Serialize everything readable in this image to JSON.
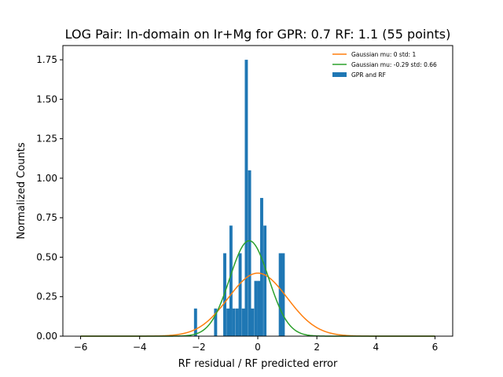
{
  "chart_data": {
    "type": "bar",
    "title": "LOG Pair: In-domain on Ir+Mg for GPR: 0.7 RF: 1.1 (55 points)",
    "xlabel": "RF residual / RF predicted error",
    "ylabel": "Normalized Counts",
    "xlim": [
      -6.6,
      6.6
    ],
    "ylim": [
      0,
      1.84
    ],
    "x_ticks": [
      -6,
      -4,
      -2,
      0,
      2,
      4,
      6
    ],
    "y_ticks": [
      0.0,
      0.25,
      0.5,
      0.75,
      1.0,
      1.25,
      1.5,
      1.75
    ],
    "x_tick_labels": [
      "−6",
      "−4",
      "−2",
      "0",
      "2",
      "4",
      "6"
    ],
    "y_tick_labels": [
      "0.00",
      "0.25",
      "0.50",
      "0.75",
      "1.00",
      "1.25",
      "1.50",
      "1.75"
    ],
    "grid": false,
    "legend_position": "top-right",
    "histogram": {
      "name": "GPR and RF",
      "color": "#1f77b4",
      "bin_width": 0.104,
      "bins": [
        {
          "start": -2.16,
          "value": 0.175
        },
        {
          "start": -1.48,
          "value": 0.175
        },
        {
          "start": -1.17,
          "value": 0.525
        },
        {
          "start": -1.06,
          "value": 0.175
        },
        {
          "start": -0.96,
          "value": 0.7
        },
        {
          "start": -0.86,
          "value": 0.175
        },
        {
          "start": -0.75,
          "value": 0.175
        },
        {
          "start": -0.65,
          "value": 0.525
        },
        {
          "start": -0.54,
          "value": 0.175
        },
        {
          "start": -0.44,
          "value": 1.75
        },
        {
          "start": -0.33,
          "value": 1.05
        },
        {
          "start": -0.23,
          "value": 0.175
        },
        {
          "start": -0.12,
          "value": 0.35
        },
        {
          "start": -0.02,
          "value": 0.35
        },
        {
          "start": 0.08,
          "value": 0.875
        },
        {
          "start": 0.19,
          "value": 0.7
        },
        {
          "start": 0.71,
          "value": 0.525
        },
        {
          "start": 0.81,
          "value": 0.525
        }
      ]
    },
    "series": [
      {
        "name": "Gaussian mu: 0 std: 1",
        "mu": 0,
        "std": 1,
        "color": "#ff7f0e",
        "x_range": [
          -6,
          6
        ]
      },
      {
        "name": "Gaussian mu: -0.29 std: 0.66",
        "mu": -0.29,
        "std": 0.66,
        "color": "#2ca02c",
        "x_range": [
          -6,
          6
        ]
      }
    ]
  }
}
